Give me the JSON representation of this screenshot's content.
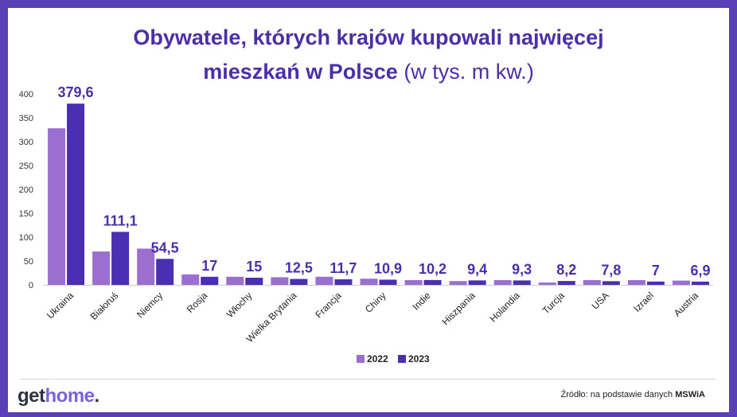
{
  "title": {
    "line1": "Obywatele, których krajów kupowali najwięcej",
    "line2_bold": "mieszkań w Polsce",
    "line2_light": " (w tys. m kw.)"
  },
  "colors": {
    "frame": "#5b3fb6",
    "title": "#4b2fa8",
    "series_2022": "#9b6fd0",
    "series_2023": "#4a2fb3",
    "label": "#4b2fa8"
  },
  "chart_data": {
    "type": "bar",
    "title": "Obywatele, których krajów kupowali najwięcej mieszkań w Polsce (w tys. m kw.)",
    "xlabel": "",
    "ylabel": "",
    "ylim": [
      0,
      400
    ],
    "yticks": [
      0,
      50,
      100,
      150,
      200,
      250,
      300,
      350,
      400
    ],
    "categories": [
      "Ukraina",
      "Białoruś",
      "Niemcy",
      "Rosja",
      "Włochy",
      "Wielka Brytania",
      "Francja",
      "Chiny",
      "Indie",
      "Hiszpania",
      "Holandia",
      "Turcja",
      "USA",
      "Izrael",
      "Austria"
    ],
    "series": [
      {
        "name": "2022",
        "values": [
          328,
          70,
          76,
          22,
          17,
          16,
          17,
          13,
          10,
          8,
          10,
          5,
          10,
          10,
          9
        ]
      },
      {
        "name": "2023",
        "values": [
          379.6,
          111.1,
          54.5,
          17,
          15,
          12.5,
          11.7,
          10.9,
          10.2,
          9.4,
          9.3,
          8.2,
          7.8,
          7,
          6.9
        ]
      }
    ],
    "data_labels": [
      "379,6",
      "111,1",
      "54,5",
      "17",
      "15",
      "12,5",
      "11,7",
      "10,9",
      "10,2",
      "9,4",
      "9,3",
      "8,2",
      "7,8",
      "7",
      "6,9"
    ],
    "legend": [
      "2022",
      "2023"
    ],
    "legend_position": "bottom-center",
    "grid": false
  },
  "footer": {
    "logo_part1": "get",
    "logo_part2": "home",
    "logo_part3": ".",
    "source_prefix": "Źródło: na podstawie danych ",
    "source_bold": "MSWiA"
  }
}
